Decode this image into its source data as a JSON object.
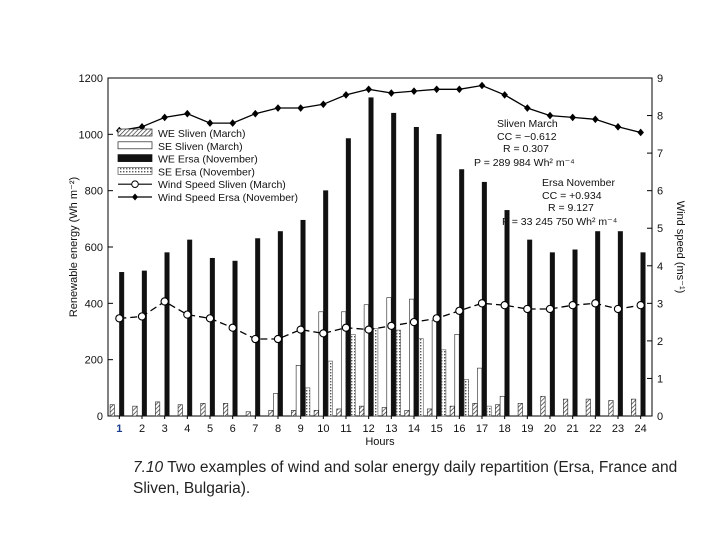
{
  "chart_data": {
    "type": "bar",
    "xlabel": "Hours",
    "ylabel": "Renewable energy (Wh m⁻²)",
    "y2label": "Wind speed (ms⁻¹)",
    "ylim": [
      0,
      1200
    ],
    "y2lim": [
      0,
      9
    ],
    "yticks": [
      "0",
      "200",
      "400",
      "600",
      "800",
      "1000",
      "1200"
    ],
    "y2ticks": [
      "0",
      "1",
      "2",
      "3",
      "4",
      "5",
      "6",
      "7",
      "8",
      "9"
    ],
    "categories": [
      "1",
      "2",
      "3",
      "4",
      "5",
      "6",
      "7",
      "8",
      "9",
      "10",
      "11",
      "12",
      "13",
      "14",
      "15",
      "16",
      "17",
      "18",
      "19",
      "20",
      "21",
      "22",
      "23",
      "24"
    ],
    "series": [
      {
        "name": "WE Sliven (March)",
        "kind": "bar",
        "style": "hatched",
        "values": [
          40,
          35,
          50,
          40,
          45,
          45,
          15,
          20,
          20,
          20,
          25,
          35,
          30,
          20,
          25,
          35,
          45,
          40,
          45,
          70,
          60,
          60,
          55,
          60
        ]
      },
      {
        "name": "SE Sliven (March)",
        "kind": "bar",
        "style": "white",
        "values": [
          0,
          0,
          0,
          0,
          0,
          0,
          0,
          80,
          180,
          370,
          370,
          395,
          420,
          415,
          340,
          290,
          170,
          70,
          0,
          0,
          0,
          0,
          0,
          0
        ]
      },
      {
        "name": "WE Ersa (November)",
        "kind": "bar",
        "style": "black",
        "values": [
          510,
          515,
          580,
          625,
          560,
          550,
          630,
          655,
          695,
          800,
          985,
          1130,
          1075,
          1025,
          1000,
          875,
          830,
          730,
          625,
          580,
          590,
          655,
          655,
          580
        ]
      },
      {
        "name": "SE Ersa (November)",
        "kind": "bar",
        "style": "dotted",
        "values": [
          0,
          0,
          0,
          0,
          0,
          0,
          0,
          0,
          100,
          195,
          290,
          310,
          305,
          275,
          235,
          130,
          35,
          0,
          0,
          0,
          0,
          0,
          0,
          0
        ]
      },
      {
        "name": "Wind Speed Sliven (March)",
        "kind": "line",
        "marker": "circle",
        "dashed": true,
        "axis": "right",
        "values": [
          2.6,
          2.65,
          3.05,
          2.7,
          2.6,
          2.35,
          2.05,
          2.05,
          2.3,
          2.2,
          2.35,
          2.3,
          2.4,
          2.5,
          2.6,
          2.8,
          3.0,
          2.95,
          2.85,
          2.85,
          2.95,
          3.0,
          2.85,
          2.95
        ]
      },
      {
        "name": "Wind Speed Ersa (November)",
        "kind": "line",
        "marker": "diamond",
        "dashed": false,
        "axis": "right",
        "values": [
          7.6,
          7.7,
          7.95,
          8.05,
          7.8,
          7.8,
          8.05,
          8.2,
          8.2,
          8.3,
          8.55,
          8.7,
          8.6,
          8.65,
          8.7,
          8.7,
          8.8,
          8.55,
          8.2,
          8.0,
          7.95,
          7.9,
          7.7,
          7.55
        ]
      }
    ],
    "annotations": [
      {
        "title": "Sliven March",
        "cc": "CC = −0.612",
        "r": "R = 0.307",
        "p": "P = 289 984 Wh² m⁻⁴"
      },
      {
        "title": "Ersa November",
        "cc": "CC = +0.934",
        "r": "R = 9.127",
        "p": "P = 33 245 750 Wh² m⁻⁴"
      }
    ],
    "legend_position": "top-left"
  },
  "caption": {
    "number": "7.10",
    "text": "Two examples of wind and solar energy daily repartition (Ersa, France and Sliven, Bulgaria)."
  }
}
